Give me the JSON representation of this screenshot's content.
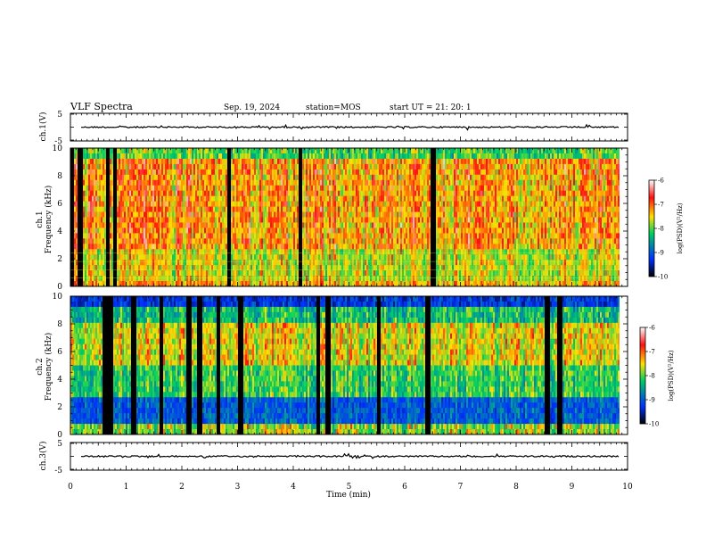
{
  "header": {
    "title": "VLF Spectra",
    "date": "Sep. 19, 2024",
    "station": "station=MOS",
    "start": "start UT =  21: 20: 1"
  },
  "chart_data": [
    {
      "type": "line",
      "name": "ch1-waveform",
      "ylabel": "ch.1(V)",
      "ylim": [
        -5,
        5
      ],
      "y_ticks": [
        "5",
        "-5"
      ],
      "x_range": [
        0,
        10
      ],
      "baseline_value": 0
    },
    {
      "type": "heatmap",
      "name": "ch1-spectrogram",
      "ylabel": "ch.1\nFrequency (kHz)",
      "ylim": [
        0,
        10
      ],
      "y_ticks": [
        "0",
        "2",
        "4",
        "6",
        "8",
        "10"
      ],
      "x_range": [
        0,
        9.85
      ],
      "colorbar": {
        "label": "log(PSD)(V²/Hz)",
        "min": -10,
        "max": -6,
        "ticks": [
          "-6",
          "-7",
          "-8",
          "-9",
          "-10"
        ]
      },
      "dominant_level": -7,
      "active_band_khz": [
        0.3,
        9.3
      ]
    },
    {
      "type": "heatmap",
      "name": "ch2-spectrogram",
      "ylabel": "ch.2\nFrequency (kHz)",
      "ylim": [
        0,
        10
      ],
      "y_ticks": [
        "0",
        "2",
        "4",
        "6",
        "8",
        "10"
      ],
      "x_range": [
        0,
        9.85
      ],
      "colorbar": {
        "label": "log(PSD)(V²/Hz)",
        "min": -10,
        "max": -6,
        "ticks": [
          "-6",
          "-7",
          "-8",
          "-9",
          "-10"
        ]
      },
      "dominant_level": -8,
      "peak_band_khz": [
        5,
        8
      ]
    },
    {
      "type": "line",
      "name": "ch3-waveform",
      "ylabel": "ch.3(V)",
      "ylim": [
        -5,
        5
      ],
      "y_ticks": [
        "5",
        "-5"
      ],
      "x_range": [
        0,
        10
      ],
      "baseline_value": 0
    }
  ],
  "xaxis": {
    "label": "Time (min)",
    "ticks": [
      "0",
      "1",
      "2",
      "3",
      "4",
      "5",
      "6",
      "7",
      "8",
      "9",
      "10"
    ],
    "range": [
      0,
      10
    ]
  },
  "colors": {
    "low": "#000000",
    "mid_low": "#0030ff",
    "mid": "#00d060",
    "mid_high": "#ffe000",
    "high": "#ff1010",
    "top": "#ffffff"
  }
}
